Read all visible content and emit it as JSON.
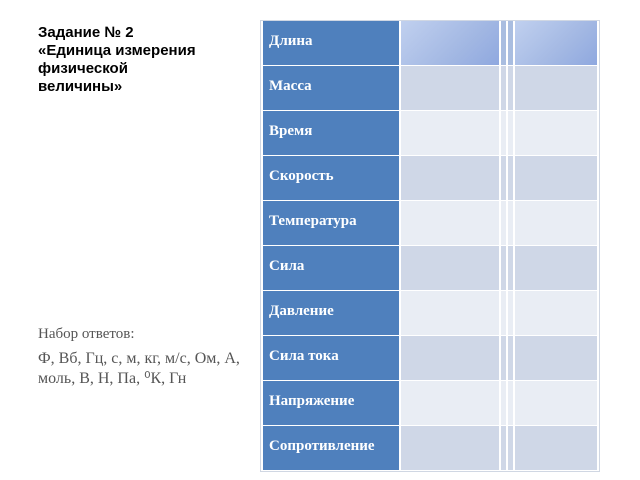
{
  "title": {
    "line1": "Задание № 2",
    "line2": "«Единица измерения",
    "line3": "физической",
    "line4": "величины»"
  },
  "answers": {
    "label": "Набор ответов:",
    "list": "Ф, Вб, Гц, с, м, кг, м/с, Ом, А, моль, В, Н, Па, ⁰К, Гн"
  },
  "table": {
    "rows": [
      "Длина",
      "Масса",
      "Время",
      "Скорость",
      "Температура",
      "Сила",
      "Давление",
      "Сила тока",
      "Напряжение",
      "Сопротивление"
    ]
  }
}
